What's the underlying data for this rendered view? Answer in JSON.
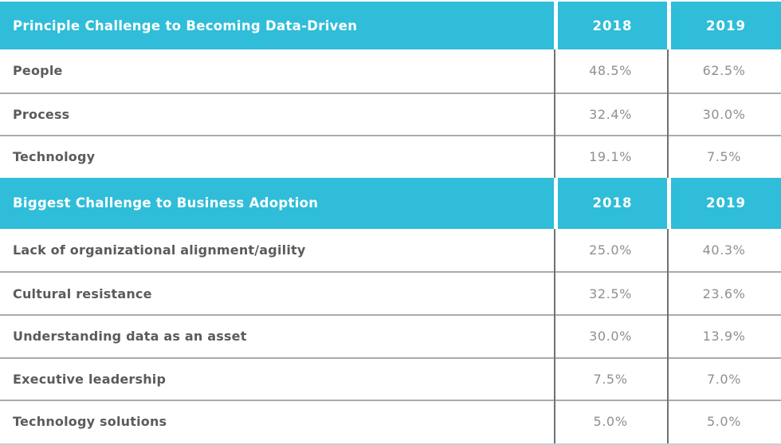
{
  "table": {
    "sections": [
      {
        "title": "Principle Challenge to Becoming Data-Driven",
        "col_2018": "2018",
        "col_2019": "2019",
        "rows": [
          {
            "label": "People",
            "v2018": "48.5%",
            "v2019": "62.5%"
          },
          {
            "label": "Process",
            "v2018": "32.4%",
            "v2019": "30.0%"
          },
          {
            "label": "Technology",
            "v2018": "19.1%",
            "v2019": "7.5%"
          }
        ]
      },
      {
        "title": "Biggest Challenge to Business Adoption",
        "col_2018": "2018",
        "col_2019": "2019",
        "rows": [
          {
            "label": "Lack of organizational alignment/agility",
            "v2018": "25.0%",
            "v2019": "40.3%"
          },
          {
            "label": "Cultural resistance",
            "v2018": "32.5%",
            "v2019": "23.6%"
          },
          {
            "label": "Understanding data as an asset",
            "v2018": "30.0%",
            "v2019": "13.9%"
          },
          {
            "label": "Executive leadership",
            "v2018": "7.5%",
            "v2019": "7.0%"
          },
          {
            "label": "Technology solutions",
            "v2018": "5.0%",
            "v2019": "5.0%"
          }
        ]
      }
    ]
  },
  "colors": {
    "accent_cyan": "#2fbdd9",
    "header_text": "#ffffff",
    "label_text": "#5a5b5e",
    "value_text": "#8d8f92",
    "row_divider": "#a9abae",
    "column_divider": "#6f7174",
    "bottom_border": "#ccced0"
  },
  "chart_data": [
    {
      "type": "table",
      "title": "Principle Challenge to Becoming Data-Driven",
      "columns": [
        "2018",
        "2019"
      ],
      "categories": [
        "People",
        "Process",
        "Technology"
      ],
      "series": [
        {
          "name": "2018",
          "values": [
            48.5,
            32.4,
            19.1
          ]
        },
        {
          "name": "2019",
          "values": [
            62.5,
            30.0,
            7.5
          ]
        }
      ],
      "unit": "%"
    },
    {
      "type": "table",
      "title": "Biggest Challenge to Business Adoption",
      "columns": [
        "2018",
        "2019"
      ],
      "categories": [
        "Lack of organizational alignment/agility",
        "Cultural resistance",
        "Understanding data as an asset",
        "Executive leadership",
        "Technology solutions"
      ],
      "series": [
        {
          "name": "2018",
          "values": [
            25.0,
            32.5,
            30.0,
            7.5,
            5.0
          ]
        },
        {
          "name": "2019",
          "values": [
            40.3,
            23.6,
            13.9,
            7.0,
            5.0
          ]
        }
      ],
      "unit": "%"
    }
  ]
}
